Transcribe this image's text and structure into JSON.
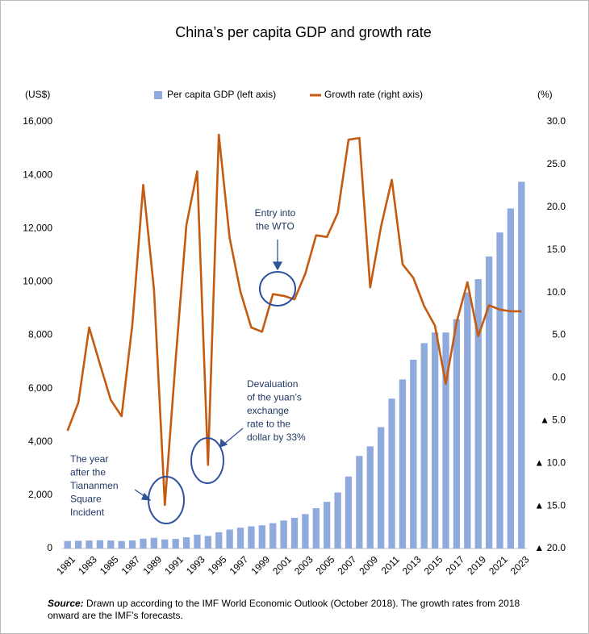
{
  "chart_data": {
    "type": "bar-line",
    "title": "China’s per capita GDP and growth rate",
    "y_label": "(US$)",
    "y2_label": "(%)",
    "categories": [
      "1981",
      null,
      "1983",
      null,
      "1985",
      null,
      "1987",
      null,
      "1989",
      null,
      "1991",
      null,
      "1993",
      null,
      "1995",
      null,
      "1997",
      null,
      "1999",
      null,
      "2001",
      null,
      "2003",
      null,
      "2005",
      null,
      "2007",
      null,
      "2009",
      null,
      "2011",
      null,
      "2013",
      null,
      "2015",
      null,
      "2017",
      null,
      "2019",
      null,
      "2021",
      null,
      "2023"
    ],
    "series": [
      {
        "name": "Per capita GDP (left axis)",
        "type": "bar",
        "color": "#8faadc",
        "values": [
          280,
          290,
          300,
          310,
          300,
          280,
          300,
          370,
          400,
          340,
          360,
          420,
          520,
          470,
          610,
          710,
          780,
          830,
          870,
          950,
          1050,
          1150,
          1290,
          1510,
          1750,
          2100,
          2700,
          3470,
          3830,
          4550,
          5620,
          6340,
          7080,
          7700,
          8100,
          8100,
          8600,
          9600,
          10100,
          10950,
          11850,
          12750,
          13750
        ]
      },
      {
        "name": "Growth rate (right axis)",
        "type": "line",
        "axis": "y2",
        "color": "#c55a11",
        "values": [
          -6.2,
          -2.9,
          5.9,
          1.6,
          -2.6,
          -4.5,
          6.3,
          22.6,
          10.3,
          -14.9,
          2.1,
          17.9,
          24.2,
          -10.2,
          28.5,
          16.4,
          10.1,
          5.9,
          5.4,
          9.8,
          9.6,
          9.2,
          12.2,
          16.7,
          16.5,
          19.3,
          27.9,
          28.1,
          10.6,
          17.7,
          23.2,
          13.3,
          11.7,
          8.4,
          6.1,
          -0.7,
          6.5,
          11.2,
          4.9,
          8.5,
          8.0,
          7.8,
          7.8
        ]
      }
    ],
    "ylim": [
      0,
      16000
    ],
    "yticks": [
      0,
      {
        "value": 2000,
        "label": "2,000"
      },
      {
        "value": 4000,
        "label": "4,000"
      },
      {
        "value": 6000,
        "label": "6,000"
      },
      {
        "value": 8000,
        "label": "8,000"
      },
      {
        "value": 10000,
        "label": "10,000"
      },
      {
        "value": 12000,
        "label": "12,000"
      },
      {
        "value": 14000,
        "label": "14,000"
      },
      {
        "value": 16000,
        "label": "16,000"
      }
    ],
    "y2lim": [
      -20,
      30
    ],
    "y2ticks": [
      {
        "value": -20,
        "label": "▲ 20.0"
      },
      {
        "value": -15,
        "label": "▲ 15.0"
      },
      {
        "value": -10,
        "label": "▲ 10.0"
      },
      {
        "value": -5,
        "label": "▲ 5.0"
      },
      {
        "value": 0,
        "label": "0.0"
      },
      {
        "value": 5,
        "label": "5.0"
      },
      {
        "value": 10,
        "label": "10.0"
      },
      {
        "value": 15,
        "label": "15.0"
      },
      {
        "value": 20,
        "label": "20.0"
      },
      {
        "value": 25,
        "label": "25.0"
      },
      {
        "value": 30,
        "label": "30.0"
      }
    ],
    "annotations": [
      {
        "lines": [
          "Entry into",
          "the WTO"
        ]
      },
      {
        "lines": [
          "Devaluation",
          "of the yuan’s",
          "exchange",
          "rate to the",
          "dollar by 33%"
        ]
      },
      {
        "lines": [
          "The year",
          "after the",
          "Tiananmen",
          "Square",
          "Incident"
        ]
      }
    ],
    "source_label": "Source:",
    "source": "Drawn up according to the IMF World Economic Outlook (October 2018). The growth rates from 2018 onward are the IMF’s forecasts."
  }
}
